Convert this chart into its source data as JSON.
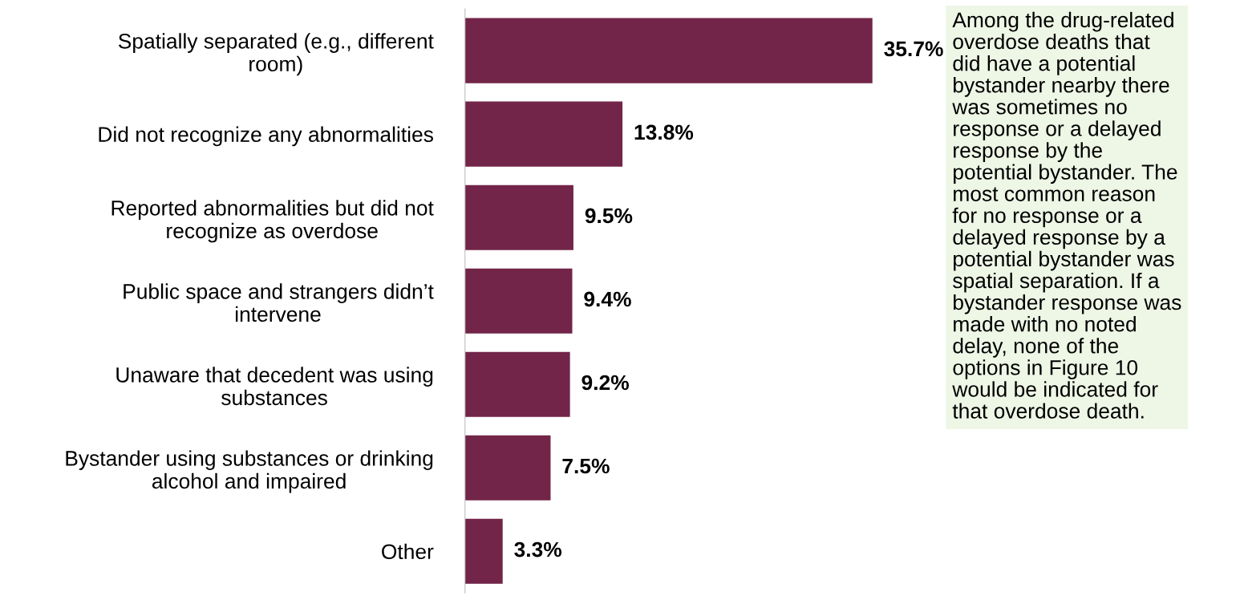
{
  "chart_data": {
    "type": "bar",
    "orientation": "horizontal",
    "categories": [
      "Spatially separated (e.g., different\nroom)",
      "Did not recognize any abnormalities",
      "Reported abnormalities but did not\nrecognize as overdose",
      "Public space and strangers didn’t\nintervene",
      "Unaware that decedent was using\nsubstances",
      "Bystander using substances or drinking\nalcohol and impaired",
      "Other"
    ],
    "values": [
      35.7,
      13.8,
      9.5,
      9.4,
      9.2,
      7.5,
      3.3
    ],
    "value_labels": [
      "35.7%",
      "13.8%",
      "9.5%",
      "9.4%",
      "9.2%",
      "7.5%",
      "3.3%"
    ],
    "color": "#722548",
    "annotations": [
      "Among the drug-related\noverdose deaths that\ndid have a potential\nbystander nearby there\nwas sometimes no\nresponse or a delayed\nresponse by the\npotential bystander. The\nmost common reason\nfor no response or a\ndelayed response by a\npotential bystander was\nspatial separation. If a\nbystander response was\nmade with no noted\ndelay, none of the\noptions in Figure 10\nwould be indicated for\nthat overdose death."
    ],
    "grid": false,
    "legend": false
  }
}
